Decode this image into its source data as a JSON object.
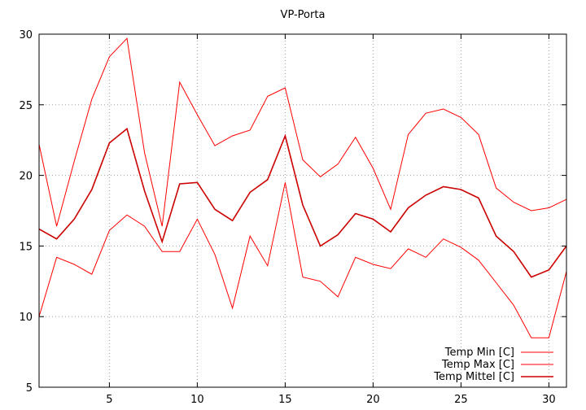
{
  "chart_data": {
    "type": "line",
    "title": "VP-Porta",
    "xlabel": "",
    "ylabel": "",
    "x": [
      1,
      2,
      3,
      4,
      5,
      6,
      7,
      8,
      9,
      10,
      11,
      12,
      13,
      14,
      15,
      16,
      17,
      18,
      19,
      20,
      21,
      22,
      23,
      24,
      25,
      26,
      27,
      28,
      29,
      30,
      31
    ],
    "xlim": [
      1,
      31
    ],
    "ylim": [
      5,
      30
    ],
    "xticks": [
      5,
      10,
      15,
      20,
      25,
      30
    ],
    "yticks": [
      5,
      10,
      15,
      20,
      25,
      30
    ],
    "grid": true,
    "legend_position": "bottom-right",
    "series": [
      {
        "name": "Temp Min [C]",
        "color": "#ff0000",
        "width": 1,
        "values": [
          10.0,
          14.2,
          13.7,
          13.0,
          16.1,
          17.2,
          16.4,
          14.6,
          14.6,
          16.9,
          14.4,
          10.6,
          15.7,
          13.6,
          19.5,
          12.8,
          12.5,
          11.4,
          14.2,
          13.7,
          13.4,
          14.8,
          14.2,
          15.5,
          14.9,
          14.0,
          12.4,
          10.8,
          8.5,
          8.5,
          13.2
        ]
      },
      {
        "name": "Temp Max [C]",
        "color": "#ff0000",
        "width": 1,
        "values": [
          22.2,
          16.4,
          21.0,
          25.4,
          28.4,
          29.7,
          21.6,
          16.4,
          26.6,
          24.3,
          22.1,
          22.8,
          23.2,
          25.6,
          26.2,
          21.1,
          19.9,
          20.8,
          22.7,
          20.5,
          17.6,
          22.9,
          24.4,
          24.7,
          24.1,
          22.9,
          19.1,
          18.1,
          17.5,
          17.7,
          18.3
        ]
      },
      {
        "name": "Temp Mittel [C]",
        "color": "#cc0000",
        "width": 1.6,
        "values": [
          16.2,
          15.5,
          16.9,
          19.0,
          22.3,
          23.3,
          18.9,
          15.3,
          19.4,
          19.5,
          17.6,
          16.8,
          18.8,
          19.7,
          22.8,
          17.9,
          15.0,
          15.8,
          17.3,
          16.9,
          16.0,
          17.7,
          18.6,
          19.2,
          19.0,
          18.4,
          15.7,
          14.6,
          12.8,
          13.3,
          15.0
        ]
      }
    ]
  }
}
